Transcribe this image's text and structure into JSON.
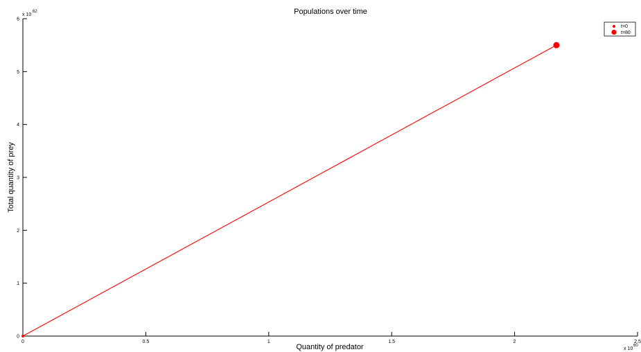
{
  "chart_data": {
    "type": "line",
    "title": "Populations over time",
    "xlabel": "Quantity of predator",
    "ylabel": "Total quantity of prey",
    "x_multiplier": "x 10",
    "x_exponent": "60",
    "y_multiplier": "x 10",
    "y_exponent": "62",
    "xlim": [
      0,
      2.5
    ],
    "ylim": [
      0,
      6
    ],
    "x_ticks": [
      0,
      0.5,
      1,
      1.5,
      2,
      2.5
    ],
    "x_tick_labels": [
      "0",
      "0.5",
      "1",
      "1.5",
      "2",
      "2.5"
    ],
    "y_ticks": [
      0,
      1,
      2,
      3,
      4,
      5,
      6
    ],
    "y_tick_labels": [
      "0",
      "1",
      "2",
      "3",
      "4",
      "5",
      "6"
    ],
    "grid": false,
    "legend_position": "top-right",
    "series": [
      {
        "x": [
          0,
          2.17
        ],
        "y": [
          0,
          5.5
        ],
        "color": "#ff0000"
      }
    ],
    "markers": [
      {
        "label": "t=0",
        "x": 0,
        "y": 0,
        "size": "small",
        "color": "#ff0000"
      },
      {
        "label": "t=80",
        "x": 2.17,
        "y": 5.5,
        "size": "large",
        "color": "#ff0000"
      }
    ]
  }
}
